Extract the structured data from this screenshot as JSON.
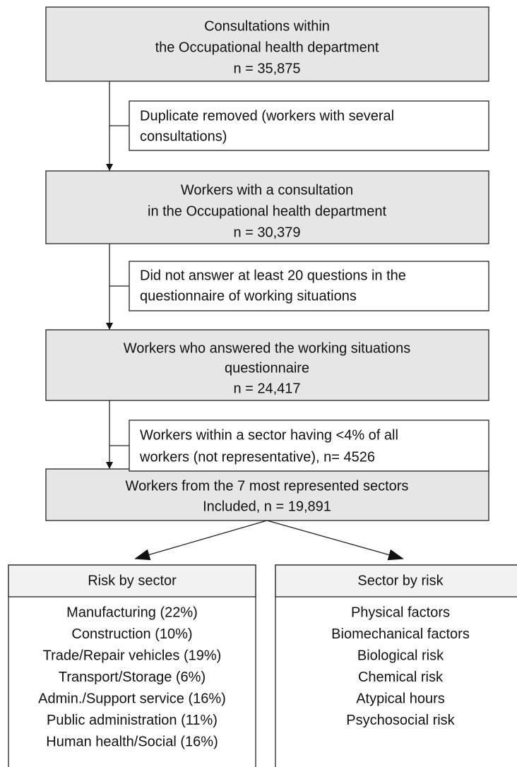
{
  "steps": [
    {
      "lines": [
        "Consultations within",
        "the Occupational health department",
        "n = 35,875"
      ]
    },
    {
      "lines": [
        "Workers with a consultation",
        "in the Occupational health department",
        "n = 30,379"
      ]
    },
    {
      "lines": [
        "Workers who answered the working situations",
        "questionnaire",
        "n = 24,417"
      ]
    },
    {
      "lines": [
        "Workers from the 7 most represented sectors",
        "Included, n = 19,891"
      ]
    }
  ],
  "exclusions": [
    {
      "lines": [
        "Duplicate removed (workers with several",
        "consultations)"
      ]
    },
    {
      "lines": [
        "Did not answer at least 20 questions in the",
        "questionnaire of working situations"
      ]
    },
    {
      "lines": [
        "Workers within a sector having <4% of all",
        "workers (not representative), n= 4526"
      ]
    }
  ],
  "outcomes": [
    {
      "title": "Risk by sector",
      "items": [
        "Manufacturing (22%)",
        "Construction (10%)",
        "Trade/Repair vehicles (19%)",
        "Transport/Storage (6%)",
        "Admin./Support service (16%)",
        "Public administration (11%)",
        "Human health/Social (16%)"
      ]
    },
    {
      "title": "Sector by risk",
      "items": [
        "Physical factors",
        "Biomechanical factors",
        "Biological risk",
        "Chemical risk",
        "Atypical hours",
        "Psychosocial risk"
      ]
    }
  ]
}
